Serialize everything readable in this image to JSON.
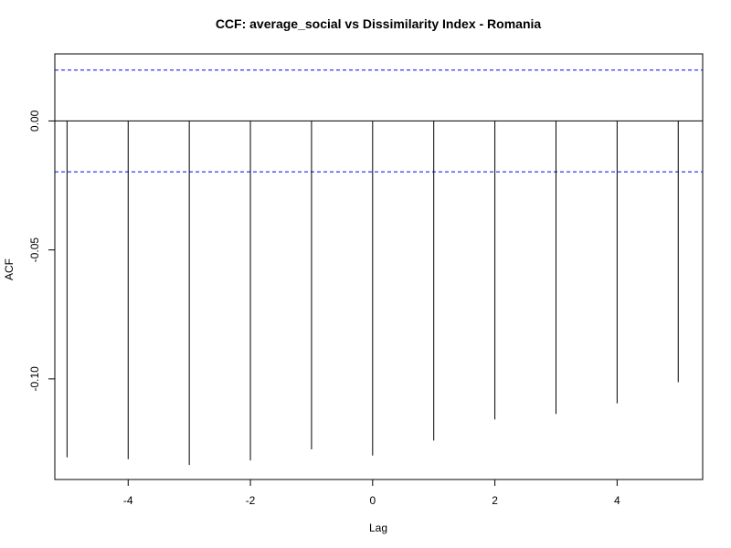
{
  "chart_data": {
    "type": "bar",
    "title": "CCF: average_social vs Dissimilarity Index - Romania",
    "xlabel": "Lag",
    "ylabel": "ACF",
    "xlim": [
      -5.2,
      5.4
    ],
    "ylim": [
      -0.139,
      0.026
    ],
    "x_ticks": [
      -4,
      -2,
      0,
      2,
      4
    ],
    "y_ticks": [
      0.0,
      -0.05,
      -0.1
    ],
    "y_tick_labels": [
      "0.00",
      "-0.05",
      "-0.10"
    ],
    "ci_bounds": [
      0.0197,
      -0.0197
    ],
    "x": [
      -5,
      -4,
      -3,
      -2,
      -1,
      0,
      1,
      2,
      3,
      4,
      5
    ],
    "values": [
      -0.1304,
      -0.1311,
      -0.1334,
      -0.1316,
      -0.1273,
      -0.1297,
      -0.1239,
      -0.1157,
      -0.1136,
      -0.1095,
      -0.1013
    ],
    "colors": {
      "stem": "#000000",
      "ci": "#0000ff",
      "zero": "#000000",
      "frame": "#000000"
    }
  }
}
